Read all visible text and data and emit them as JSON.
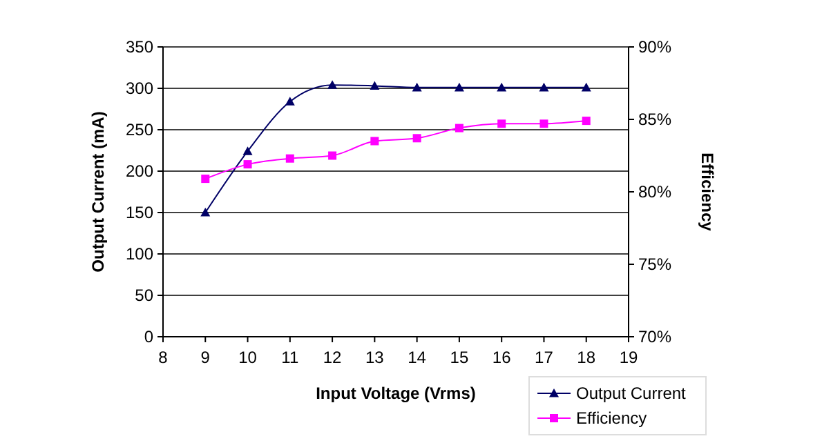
{
  "chart_data": {
    "type": "line",
    "xlabel": "Input Voltage (Vrms)",
    "ylabel": "Output Current (mA)",
    "y2label": "Efficiency",
    "x": [
      9,
      10,
      11,
      12,
      13,
      14,
      15,
      16,
      17,
      18
    ],
    "series": [
      {
        "name": "Output Current",
        "color": "#000066",
        "marker": "triangle",
        "values": [
          150,
          224,
          284,
          304,
          303,
          301,
          301,
          301,
          301,
          301
        ]
      },
      {
        "name": "Efficiency",
        "color": "#ff00ff",
        "marker": "square",
        "axis": "y2",
        "values": [
          80.9,
          81.9,
          82.3,
          82.5,
          83.5,
          83.7,
          84.4,
          84.7,
          84.7,
          84.9
        ]
      }
    ],
    "xlim": [
      8,
      19
    ],
    "xticks": [
      8,
      9,
      10,
      11,
      12,
      13,
      14,
      15,
      16,
      17,
      18,
      19
    ],
    "ylim": [
      0,
      350
    ],
    "yticks": [
      0,
      50,
      100,
      150,
      200,
      250,
      300,
      350
    ],
    "y2lim": [
      70,
      90
    ],
    "y2ticks": [
      {
        "value": 70,
        "label": "70%"
      },
      {
        "value": 75,
        "label": "75%"
      },
      {
        "value": 80,
        "label": "80%"
      },
      {
        "value": 85,
        "label": "85%"
      },
      {
        "value": 90,
        "label": "90%"
      }
    ],
    "grid": "y",
    "legend": "bottom right",
    "line_style": "solid"
  }
}
